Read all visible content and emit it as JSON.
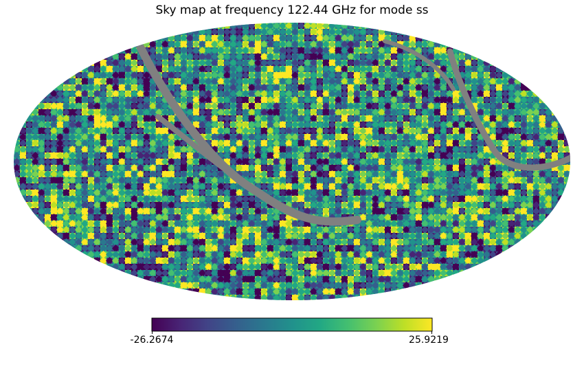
{
  "chart_data": {
    "type": "heatmap",
    "projection": "mollweide",
    "title": "Sky map at frequency 122.44 GHz for mode ss",
    "colormap": "viridis",
    "missing_color": "#808080",
    "grid": false,
    "colorbar": {
      "orientation": "horizontal",
      "placement": "bottom",
      "min": -26.2674,
      "max": 25.9219,
      "min_label": "-26.2674",
      "max_label": "25.9219"
    }
  }
}
